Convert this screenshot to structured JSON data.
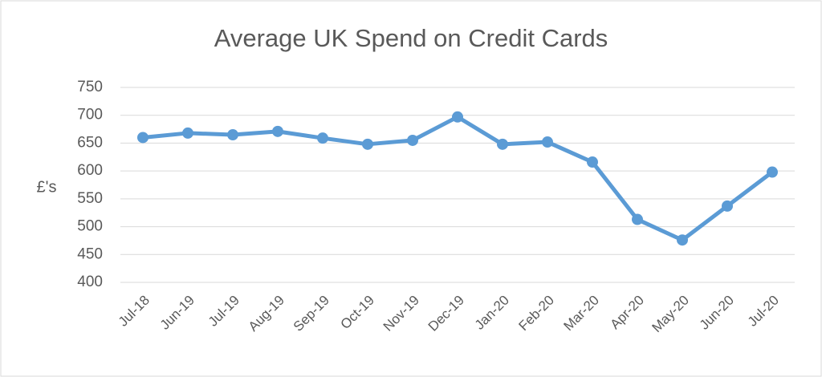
{
  "chart_data": {
    "type": "line",
    "title": "Average UK Spend on Credit Cards",
    "y_label": "£'s",
    "categories": [
      "Jul-18",
      "Jun-19",
      "Jul-19",
      "Aug-19",
      "Sep-19",
      "Oct-19",
      "Nov-19",
      "Dec-19",
      "Jan-20",
      "Feb-20",
      "Mar-20",
      "Apr-20",
      "May-20",
      "Jun-20",
      "Jul-20"
    ],
    "values": [
      660,
      668,
      665,
      671,
      659,
      648,
      655,
      697,
      648,
      652,
      616,
      513,
      476,
      537,
      598
    ],
    "color": "#5b9bd5",
    "ylim": [
      400,
      750
    ],
    "yticks": [
      400,
      450,
      500,
      550,
      600,
      650,
      700,
      750
    ],
    "grid": true
  }
}
